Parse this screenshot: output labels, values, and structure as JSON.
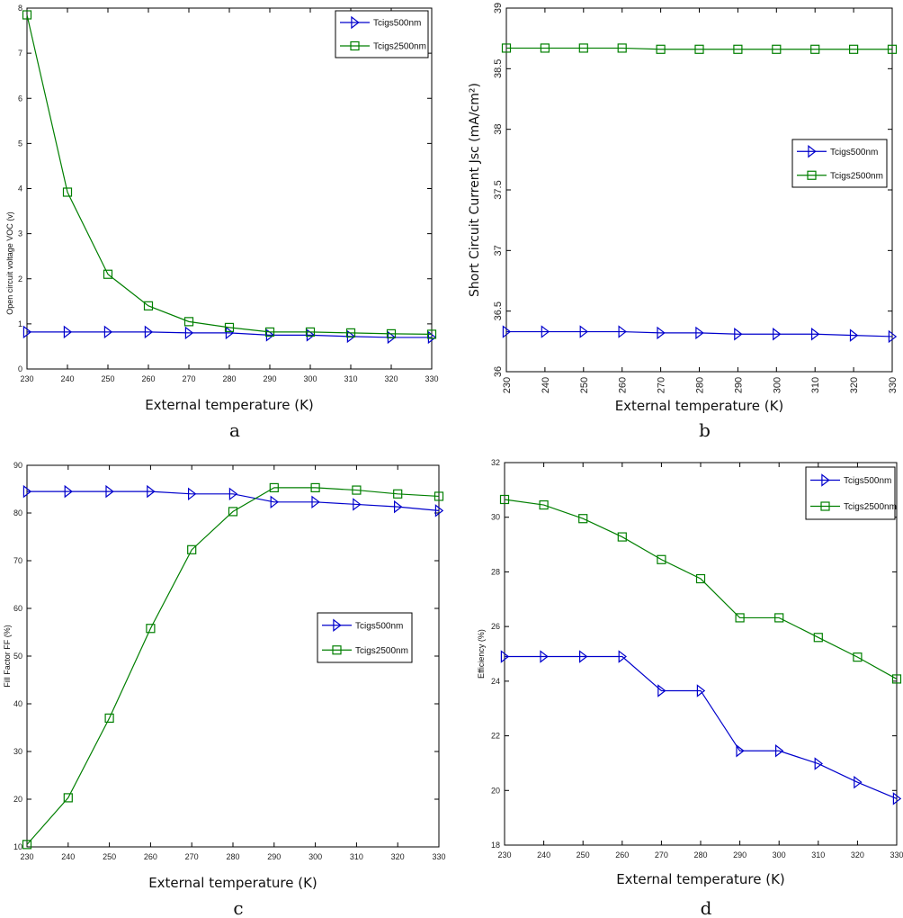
{
  "chart_data": [
    {
      "type": "line",
      "panel_label": "a",
      "xlabel": "External temperature (K)",
      "ylabel": "Open circuit  voltage VOC (v)",
      "xlim": [
        230,
        330
      ],
      "ylim": [
        0,
        8
      ],
      "x": [
        230,
        240,
        250,
        260,
        270,
        280,
        290,
        300,
        310,
        320,
        330
      ],
      "xticks": [
        230,
        240,
        250,
        260,
        270,
        280,
        290,
        300,
        310,
        320,
        330
      ],
      "yticks": [
        0,
        1,
        2,
        3,
        4,
        5,
        6,
        7,
        8
      ],
      "grid": false,
      "legend_position": "top-right",
      "series": [
        {
          "name": "Tcigs500nm",
          "color": "#0000cc",
          "marker": "triangle-right",
          "values": [
            0.82,
            0.82,
            0.82,
            0.82,
            0.8,
            0.8,
            0.75,
            0.75,
            0.72,
            0.7,
            0.7
          ]
        },
        {
          "name": "Tcigs2500nm",
          "color": "#007f00",
          "marker": "square",
          "values": [
            7.85,
            3.92,
            2.1,
            1.4,
            1.05,
            0.92,
            0.82,
            0.82,
            0.8,
            0.78,
            0.77
          ]
        }
      ]
    },
    {
      "type": "line",
      "panel_label": "b",
      "xlabel": "External temperature (K)",
      "ylabel": "Short Circuit Current Jsc (mA/cm²)",
      "xlim": [
        230,
        330
      ],
      "ylim": [
        36,
        39
      ],
      "x": [
        230,
        240,
        250,
        260,
        270,
        280,
        290,
        300,
        310,
        320,
        330
      ],
      "xticks": [
        230,
        240,
        250,
        260,
        270,
        280,
        290,
        300,
        310,
        320,
        330
      ],
      "yticks": [
        36,
        36.5,
        37,
        37.5,
        38,
        38.5,
        39
      ],
      "grid": false,
      "legend_position": "center-right",
      "series": [
        {
          "name": "Tcigs500nm",
          "color": "#0000cc",
          "marker": "triangle-right",
          "values": [
            36.33,
            36.33,
            36.33,
            36.33,
            36.32,
            36.32,
            36.31,
            36.31,
            36.31,
            36.3,
            36.29
          ]
        },
        {
          "name": "Tcigs2500nm",
          "color": "#007f00",
          "marker": "square",
          "values": [
            38.67,
            38.67,
            38.67,
            38.67,
            38.66,
            38.66,
            38.66,
            38.66,
            38.66,
            38.66,
            38.66
          ]
        }
      ]
    },
    {
      "type": "line",
      "panel_label": "c",
      "xlabel": "External temperature (K)",
      "ylabel": "Fill Factor FF (%)",
      "xlim": [
        230,
        330
      ],
      "ylim": [
        10,
        90
      ],
      "x": [
        230,
        240,
        250,
        260,
        270,
        280,
        290,
        300,
        310,
        320,
        330
      ],
      "xticks": [
        230,
        240,
        250,
        260,
        270,
        280,
        290,
        300,
        310,
        320,
        330
      ],
      "yticks": [
        10,
        20,
        30,
        40,
        50,
        60,
        70,
        80,
        90
      ],
      "grid": false,
      "legend_position": "center-right",
      "series": [
        {
          "name": "Tcigs500nm",
          "color": "#0000cc",
          "marker": "triangle-right",
          "values": [
            84.5,
            84.5,
            84.5,
            84.5,
            84,
            84,
            82.3,
            82.3,
            81.8,
            81.3,
            80.5
          ]
        },
        {
          "name": "Tcigs2500nm",
          "color": "#007f00",
          "marker": "square",
          "values": [
            10.5,
            20.3,
            37,
            55.8,
            72.3,
            80.3,
            85.3,
            85.3,
            84.8,
            84,
            83.5
          ]
        }
      ]
    },
    {
      "type": "line",
      "panel_label": "d",
      "xlabel": "External temperature (K)",
      "ylabel": "Efficiency (%)",
      "xlim": [
        230,
        330
      ],
      "ylim": [
        18,
        32
      ],
      "x": [
        230,
        240,
        250,
        260,
        270,
        280,
        290,
        300,
        310,
        320,
        330
      ],
      "xticks": [
        230,
        240,
        250,
        260,
        270,
        280,
        290,
        300,
        310,
        320,
        330
      ],
      "yticks": [
        18,
        20,
        22,
        24,
        26,
        28,
        30,
        32
      ],
      "grid": false,
      "legend_position": "top-right",
      "series": [
        {
          "name": "Tcigs500nm",
          "color": "#0000cc",
          "marker": "triangle-right",
          "values": [
            24.9,
            24.9,
            24.9,
            24.9,
            23.65,
            23.65,
            21.45,
            21.45,
            20.98,
            20.3,
            19.7
          ]
        },
        {
          "name": "Tcigs2500nm",
          "color": "#007f00",
          "marker": "square",
          "values": [
            30.65,
            30.45,
            29.95,
            29.28,
            28.45,
            27.75,
            26.32,
            26.32,
            25.6,
            24.88,
            24.08
          ]
        }
      ]
    }
  ]
}
